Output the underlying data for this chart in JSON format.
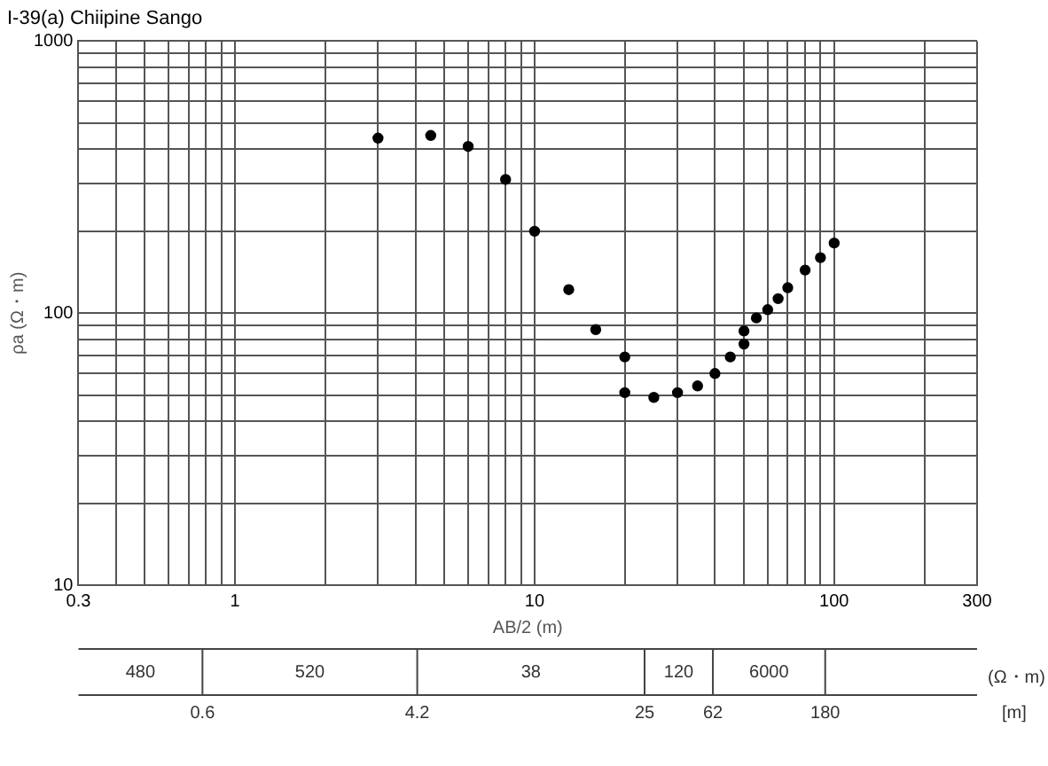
{
  "chart_data": {
    "type": "scatter",
    "title": "I-39(a) Chiipine Sango",
    "xlabel": "AB/2 (m)",
    "ylabel": "ρa (Ω・m)",
    "log": "xy",
    "grid": true,
    "legend": false,
    "marker": "circle",
    "xlim": [
      0.3,
      300
    ],
    "xticks": [
      0.3,
      {
        "value": 0.4,
        "label": null
      },
      {
        "value": 0.5,
        "label": null
      },
      {
        "value": 0.6,
        "label": null
      },
      {
        "value": 0.7,
        "label": null
      },
      {
        "value": 0.8,
        "label": null
      },
      {
        "value": 0.9,
        "label": null
      },
      1,
      {
        "value": 2,
        "label": null
      },
      {
        "value": 3,
        "label": null
      },
      {
        "value": 4,
        "label": null
      },
      {
        "value": 5,
        "label": null
      },
      {
        "value": 6,
        "label": null
      },
      {
        "value": 7,
        "label": null
      },
      {
        "value": 8,
        "label": null
      },
      {
        "value": 9,
        "label": null
      },
      10,
      {
        "value": 20,
        "label": null
      },
      {
        "value": 30,
        "label": null
      },
      {
        "value": 40,
        "label": null
      },
      {
        "value": 50,
        "label": null
      },
      {
        "value": 60,
        "label": null
      },
      {
        "value": 70,
        "label": null
      },
      {
        "value": 80,
        "label": null
      },
      {
        "value": 90,
        "label": null
      },
      100,
      {
        "value": 200,
        "label": null
      },
      300
    ],
    "ylim": [
      10,
      1000
    ],
    "yticks": [
      10,
      {
        "value": 20,
        "label": null
      },
      {
        "value": 30,
        "label": null
      },
      {
        "value": 40,
        "label": null
      },
      {
        "value": 50,
        "label": null
      },
      {
        "value": 60,
        "label": null
      },
      {
        "value": 70,
        "label": null
      },
      {
        "value": 80,
        "label": null
      },
      {
        "value": 90,
        "label": null
      },
      100,
      {
        "value": 200,
        "label": null
      },
      {
        "value": 300,
        "label": null
      },
      {
        "value": 400,
        "label": null
      },
      {
        "value": 500,
        "label": null
      },
      {
        "value": 600,
        "label": null
      },
      {
        "value": 700,
        "label": null
      },
      {
        "value": 800,
        "label": null
      },
      {
        "value": 900,
        "label": null
      },
      1000
    ],
    "series": [
      {
        "color": "#000000",
        "x": [
          3,
          4.5,
          6,
          8,
          10,
          13,
          16,
          20,
          20,
          25,
          30,
          35,
          40,
          45,
          50,
          50,
          55,
          60,
          65,
          70,
          80,
          90,
          100
        ],
        "values": [
          440,
          450,
          410,
          310,
          200,
          122,
          87,
          69,
          51,
          49,
          51,
          54,
          60,
          69,
          77,
          86,
          96,
          103,
          113,
          124,
          144,
          160,
          181
        ]
      }
    ],
    "annotations": [
      "480",
      "520",
      "38",
      "120",
      "6000",
      "(Ω・m)",
      "0.6",
      "4.2",
      "25",
      "62",
      "180",
      "[m]"
    ]
  }
}
